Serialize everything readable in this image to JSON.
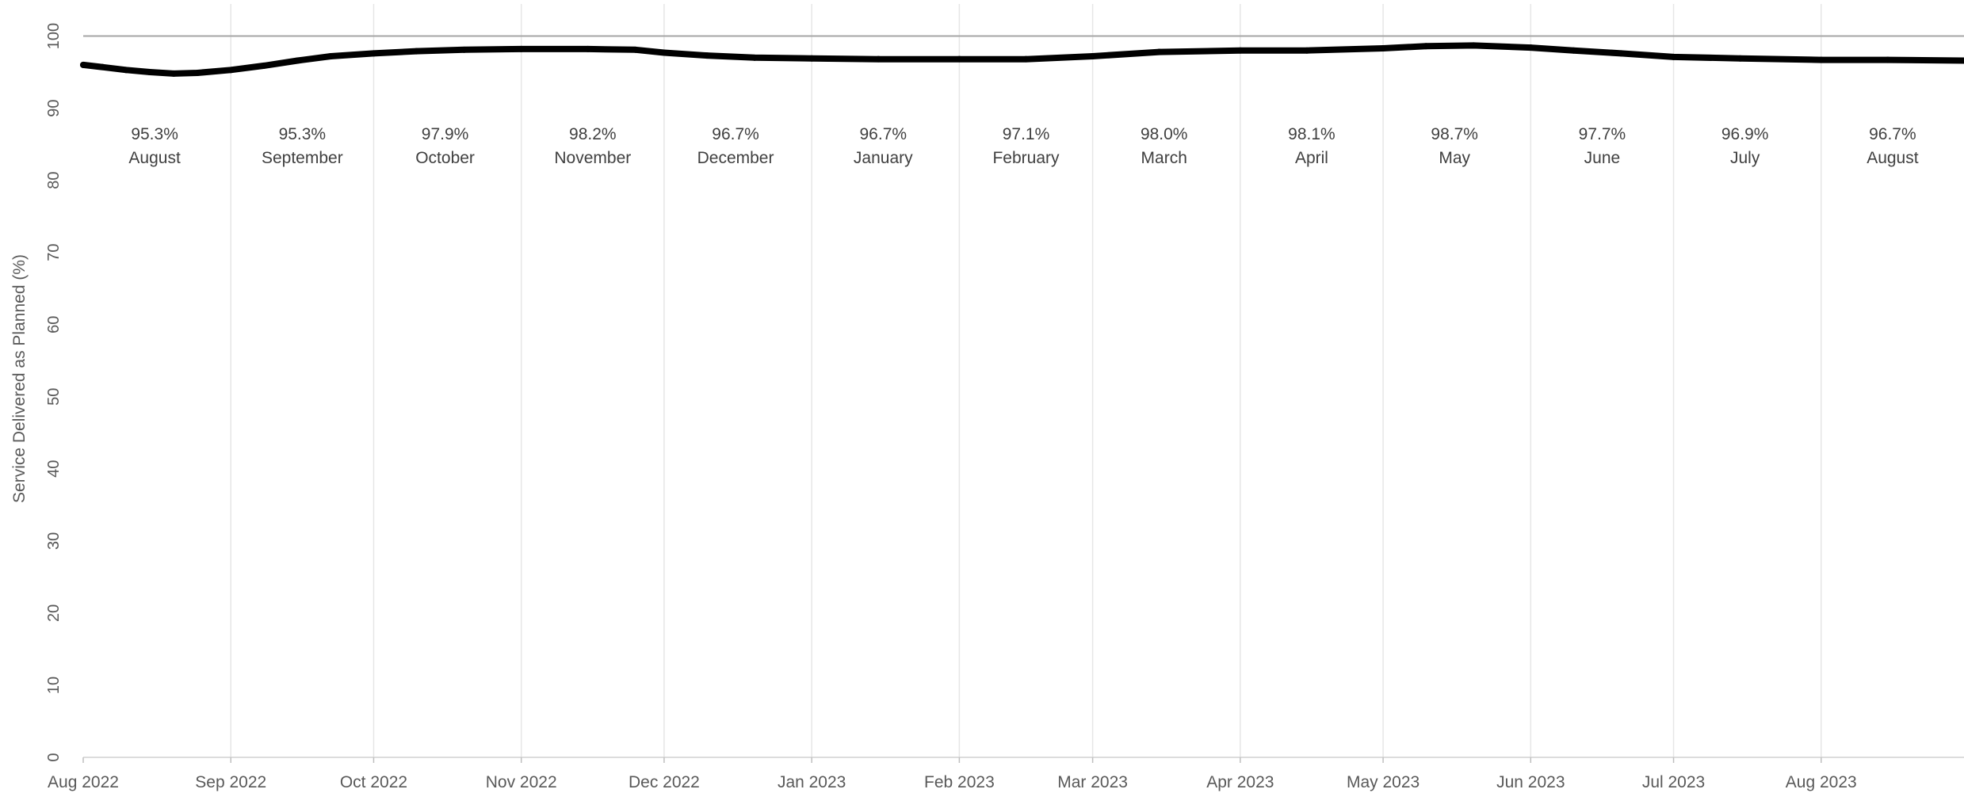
{
  "chart_data": {
    "type": "line",
    "ylabel": "Service Delivered as Planned (%)",
    "xlabel": "",
    "ylim": [
      0,
      105
    ],
    "yticks": [
      0,
      10,
      20,
      30,
      40,
      50,
      60,
      70,
      80,
      90,
      100
    ],
    "xlim": [
      "2022-08-01",
      "2023-08-31"
    ],
    "x_tick_labels": [
      "Aug 2022",
      "Sep 2022",
      "Oct 2022",
      "Nov 2022",
      "Dec 2022",
      "Jan 2023",
      "Feb 2023",
      "Mar 2023",
      "Apr 2023",
      "May 2023",
      "Jun 2023",
      "Jul 2023",
      "Aug 2023"
    ],
    "x_tick_dates": [
      "2022-08-01",
      "2022-09-01",
      "2022-10-01",
      "2022-11-01",
      "2022-12-01",
      "2023-01-01",
      "2023-02-01",
      "2023-03-01",
      "2023-04-01",
      "2023-05-01",
      "2023-06-01",
      "2023-07-01",
      "2023-08-01"
    ],
    "grid": "vertical at month boundaries",
    "target_line": 100,
    "series": [
      {
        "color": "#000000",
        "points": [
          [
            "2022-08-01",
            96.0
          ],
          [
            "2022-08-05",
            95.7
          ],
          [
            "2022-08-10",
            95.3
          ],
          [
            "2022-08-15",
            95.0
          ],
          [
            "2022-08-20",
            94.8
          ],
          [
            "2022-08-25",
            94.9
          ],
          [
            "2022-09-01",
            95.3
          ],
          [
            "2022-09-08",
            95.9
          ],
          [
            "2022-09-15",
            96.6
          ],
          [
            "2022-09-22",
            97.2
          ],
          [
            "2022-10-01",
            97.6
          ],
          [
            "2022-10-10",
            97.9
          ],
          [
            "2022-10-20",
            98.1
          ],
          [
            "2022-11-01",
            98.2
          ],
          [
            "2022-11-15",
            98.2
          ],
          [
            "2022-11-25",
            98.1
          ],
          [
            "2022-12-01",
            97.7
          ],
          [
            "2022-12-10",
            97.3
          ],
          [
            "2022-12-20",
            97.0
          ],
          [
            "2023-01-01",
            96.9
          ],
          [
            "2023-01-15",
            96.8
          ],
          [
            "2023-02-01",
            96.8
          ],
          [
            "2023-02-15",
            96.8
          ],
          [
            "2023-03-01",
            97.2
          ],
          [
            "2023-03-15",
            97.8
          ],
          [
            "2023-04-01",
            98.0
          ],
          [
            "2023-04-15",
            98.0
          ],
          [
            "2023-05-01",
            98.3
          ],
          [
            "2023-05-10",
            98.6
          ],
          [
            "2023-05-20",
            98.7
          ],
          [
            "2023-06-01",
            98.4
          ],
          [
            "2023-06-10",
            98.0
          ],
          [
            "2023-06-20",
            97.6
          ],
          [
            "2023-07-01",
            97.1
          ],
          [
            "2023-07-15",
            96.9
          ],
          [
            "2023-08-01",
            96.7
          ],
          [
            "2023-08-15",
            96.7
          ],
          [
            "2023-08-31",
            96.6
          ]
        ]
      }
    ],
    "annotations": [
      {
        "value": "95.3%",
        "month": "August",
        "date": "2022-08-16"
      },
      {
        "value": "95.3%",
        "month": "September",
        "date": "2022-09-16"
      },
      {
        "value": "97.9%",
        "month": "October",
        "date": "2022-10-16"
      },
      {
        "value": "98.2%",
        "month": "November",
        "date": "2022-11-16"
      },
      {
        "value": "96.7%",
        "month": "December",
        "date": "2022-12-16"
      },
      {
        "value": "96.7%",
        "month": "January",
        "date": "2023-01-16"
      },
      {
        "value": "97.1%",
        "month": "February",
        "date": "2023-02-15"
      },
      {
        "value": "98.0%",
        "month": "March",
        "date": "2023-03-16"
      },
      {
        "value": "98.1%",
        "month": "April",
        "date": "2023-04-16"
      },
      {
        "value": "98.7%",
        "month": "May",
        "date": "2023-05-16"
      },
      {
        "value": "97.7%",
        "month": "June",
        "date": "2023-06-16"
      },
      {
        "value": "96.9%",
        "month": "July",
        "date": "2023-07-16"
      },
      {
        "value": "96.7%",
        "month": "August",
        "date": "2023-08-16"
      }
    ]
  }
}
